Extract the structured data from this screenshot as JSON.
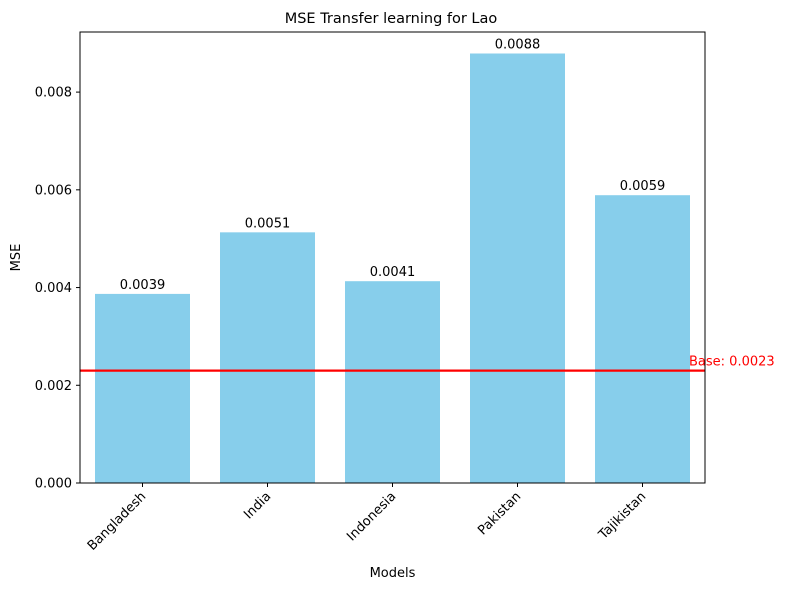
{
  "chart_data": {
    "type": "bar",
    "title": "MSE Transfer learning for Lao",
    "xlabel": "Models",
    "ylabel": "MSE",
    "categories": [
      "Bangladesh",
      "India",
      "Indonesia",
      "Pakistan",
      "Tajikistan"
    ],
    "values": [
      0.00387,
      0.00513,
      0.00413,
      0.00879,
      0.00589
    ],
    "value_labels": [
      "0.0039",
      "0.0051",
      "0.0041",
      "0.0088",
      "0.0059"
    ],
    "ylim": [
      0,
      0.00923
    ],
    "yticks": [
      0,
      0.002,
      0.004,
      0.006,
      0.008
    ],
    "ytick_labels": [
      "0.000",
      "0.002",
      "0.004",
      "0.006",
      "0.008"
    ],
    "baseline": {
      "value": 0.0023,
      "label": "Base: 0.0023",
      "color": "#ff0000"
    },
    "bar_color": "#87ceeb",
    "grid": false
  }
}
